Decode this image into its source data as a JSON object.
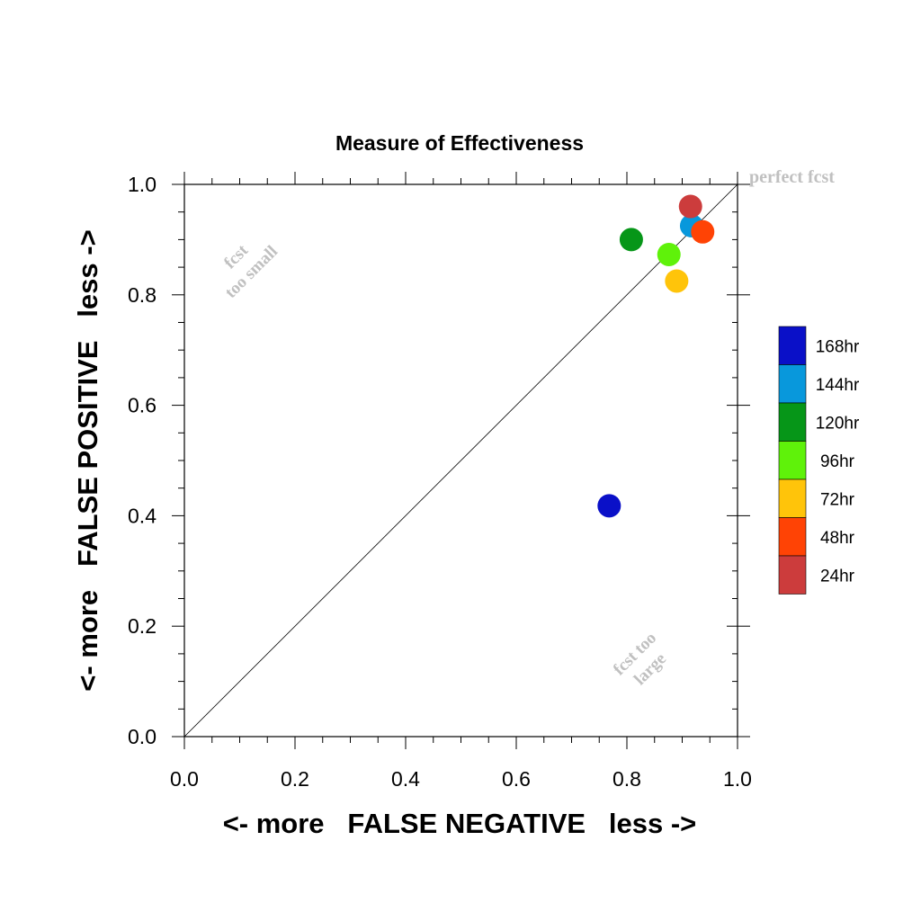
{
  "chart_data": {
    "type": "scatter",
    "title": "Measure of Effectiveness",
    "xlabel": "<- more   FALSE NEGATIVE   less ->",
    "ylabel": "<- more   FALSE POSITIVE   less ->",
    "xlim": [
      0.0,
      1.0
    ],
    "ylim": [
      0.0,
      1.0
    ],
    "x_ticks": [
      "0.0",
      "0.2",
      "0.4",
      "0.6",
      "0.8",
      "1.0"
    ],
    "y_ticks": [
      "0.0",
      "0.2",
      "0.4",
      "0.6",
      "0.8",
      "1.0"
    ],
    "grid": false,
    "legend_position": "right",
    "annotations": {
      "perfect": "perfect fcst",
      "small_line1": "fcst",
      "small_line2": "too small",
      "large_line1": "fcst too",
      "large_line2": "large"
    },
    "series": [
      {
        "name": "168hr",
        "color": "#0a10c8",
        "x": 0.768,
        "y": 0.418
      },
      {
        "name": "144hr",
        "color": "#0898dc",
        "x": 0.917,
        "y": 0.925
      },
      {
        "name": "120hr",
        "color": "#069618",
        "x": 0.808,
        "y": 0.9
      },
      {
        "name": "96hr",
        "color": "#5ff20a",
        "x": 0.876,
        "y": 0.873
      },
      {
        "name": "72hr",
        "color": "#ffc40a",
        "x": 0.89,
        "y": 0.825
      },
      {
        "name": "48hr",
        "color": "#ff4305",
        "x": 0.937,
        "y": 0.914
      },
      {
        "name": "24hr",
        "color": "#cc3c3c",
        "x": 0.915,
        "y": 0.96
      }
    ]
  }
}
